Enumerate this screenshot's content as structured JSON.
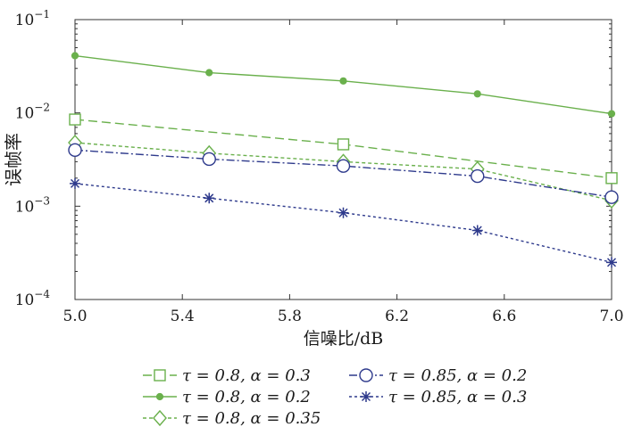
{
  "chart_data": {
    "type": "line",
    "title": "",
    "xlabel": "信噪比/dB",
    "ylabel": "误帧率",
    "x": [
      5.0,
      5.5,
      6.0,
      6.5,
      7.0
    ],
    "xlim": [
      5.0,
      7.0
    ],
    "xticks": [
      "5.0",
      "5.4",
      "5.8",
      "6.2",
      "6.6",
      "7.0"
    ],
    "y_scale": "log",
    "ylim": [
      0.0001,
      0.1
    ],
    "yticks": [
      {
        "mantissa": "10",
        "exp": "−1"
      },
      {
        "mantissa": "10",
        "exp": "−2"
      },
      {
        "mantissa": "10",
        "exp": "−3"
      },
      {
        "mantissa": "10",
        "exp": "−4"
      }
    ],
    "grid": false,
    "legend_position": "bottom",
    "series": [
      {
        "name": "τ = 0.8, α = 0.3",
        "color": "#6ab04c",
        "marker": "square",
        "line": "long-dash",
        "values": [
          0.0085,
          null,
          0.0046,
          null,
          0.002
        ]
      },
      {
        "name": "τ = 0.8, α = 0.2",
        "color": "#6ab04c",
        "marker": "filled-circle",
        "line": "solid",
        "values": [
          0.041,
          0.027,
          0.022,
          0.016,
          0.0098
        ]
      },
      {
        "name": "τ = 0.8, α = 0.35",
        "color": "#6ab04c",
        "marker": "diamond",
        "line": "short-dash",
        "values": [
          0.0048,
          0.0037,
          0.003,
          0.0025,
          0.00115
        ]
      },
      {
        "name": "τ = 0.85, α = 0.2",
        "color": "#2e3a8c",
        "marker": "open-circle",
        "line": "dash-dot",
        "values": [
          0.004,
          0.0032,
          0.0027,
          0.0021,
          0.00125
        ]
      },
      {
        "name": "τ = 0.85, α = 0.3",
        "color": "#2e3a8c",
        "marker": "asterisk",
        "line": "dotted",
        "values": [
          0.00175,
          0.00122,
          0.00085,
          0.00055,
          0.00025
        ]
      }
    ]
  }
}
